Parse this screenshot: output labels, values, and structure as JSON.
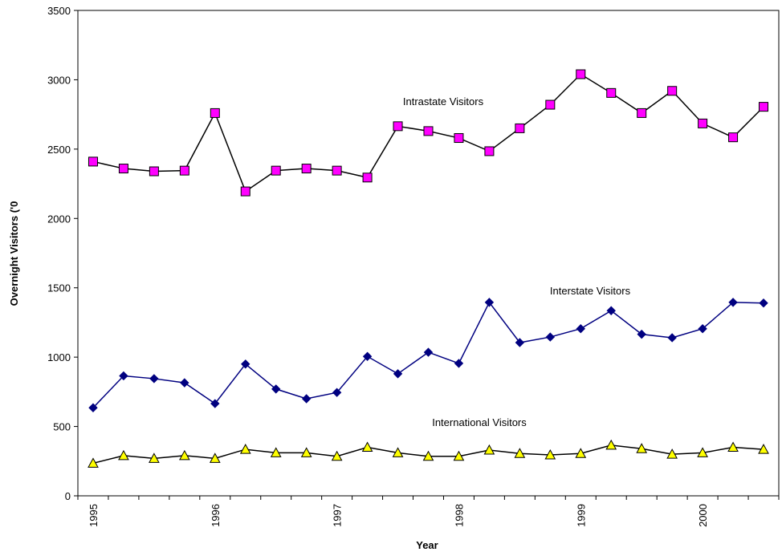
{
  "chart_data": {
    "type": "line",
    "x_label": "Year",
    "y_label": "Overnight Visitors ('0",
    "categories": [
      "1995",
      null,
      null,
      null,
      "1996",
      null,
      null,
      null,
      "1997",
      null,
      null,
      null,
      "1998",
      null,
      null,
      null,
      "1999",
      null,
      null,
      null,
      "2000",
      null,
      null
    ],
    "series": [
      {
        "name": "Intrastate Visitors",
        "color": "#ff00ff",
        "line_color": "#000000",
        "marker": "square",
        "values": [
          2410,
          2360,
          2340,
          2345,
          2760,
          2195,
          2345,
          2360,
          2345,
          2295,
          2665,
          2630,
          2580,
          2485,
          2650,
          2820,
          3040,
          2905,
          2760,
          2920,
          2685,
          2585,
          2805
        ]
      },
      {
        "name": "Interstate Visitors",
        "color": "#000080",
        "line_color": "#000080",
        "marker": "diamond",
        "values": [
          635,
          865,
          845,
          815,
          665,
          950,
          770,
          700,
          745,
          1005,
          880,
          1035,
          955,
          1395,
          1105,
          1145,
          1205,
          1335,
          1165,
          1140,
          1205,
          1395,
          1390
        ]
      },
      {
        "name": "International Visitors",
        "color": "#ffff00",
        "line_color": "#000000",
        "marker": "triangle",
        "values": [
          235,
          290,
          270,
          290,
          270,
          335,
          310,
          310,
          285,
          350,
          310,
          285,
          285,
          330,
          305,
          295,
          305,
          365,
          340,
          300,
          310,
          350,
          335
        ]
      }
    ],
    "ylim": [
      0,
      3500
    ],
    "yticks": [
      0,
      500,
      1000,
      1500,
      2000,
      2500,
      3000,
      3500
    ],
    "grid": false
  }
}
